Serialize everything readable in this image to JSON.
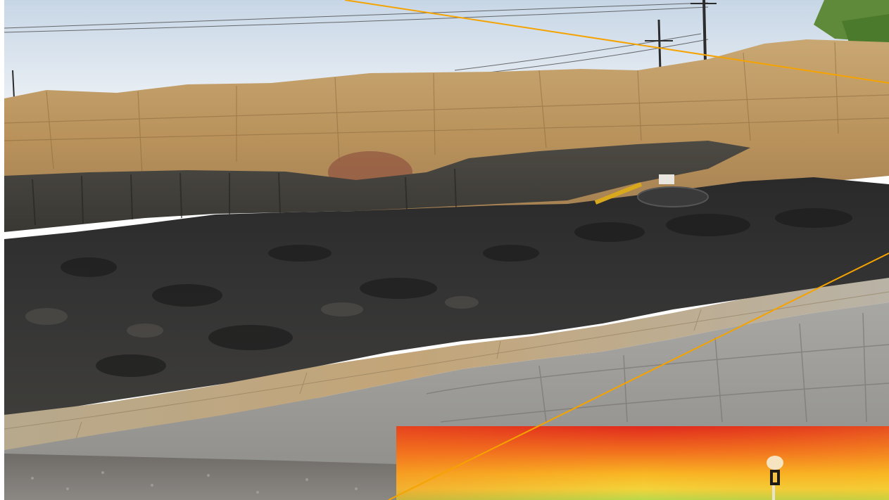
{
  "scene": {
    "subject": "road-cut-rock-outcrop",
    "layers": [
      "sky",
      "tan-sandstone-caprock",
      "dark-shale-band",
      "black-coal-seam",
      "buff-sandstone-ledge",
      "gray-siltstone",
      "gravel-ground"
    ],
    "objects": [
      "power-lines",
      "utility-pole",
      "tire",
      "yellow-equipment"
    ]
  },
  "inset": {
    "type": "thermal-image",
    "palette": [
      "#e02a1e",
      "#f2711e",
      "#f9b724",
      "#f3d33a",
      "#b9d94a"
    ],
    "marker": "figure"
  },
  "callout_lines": {
    "color": "#f5a300"
  }
}
